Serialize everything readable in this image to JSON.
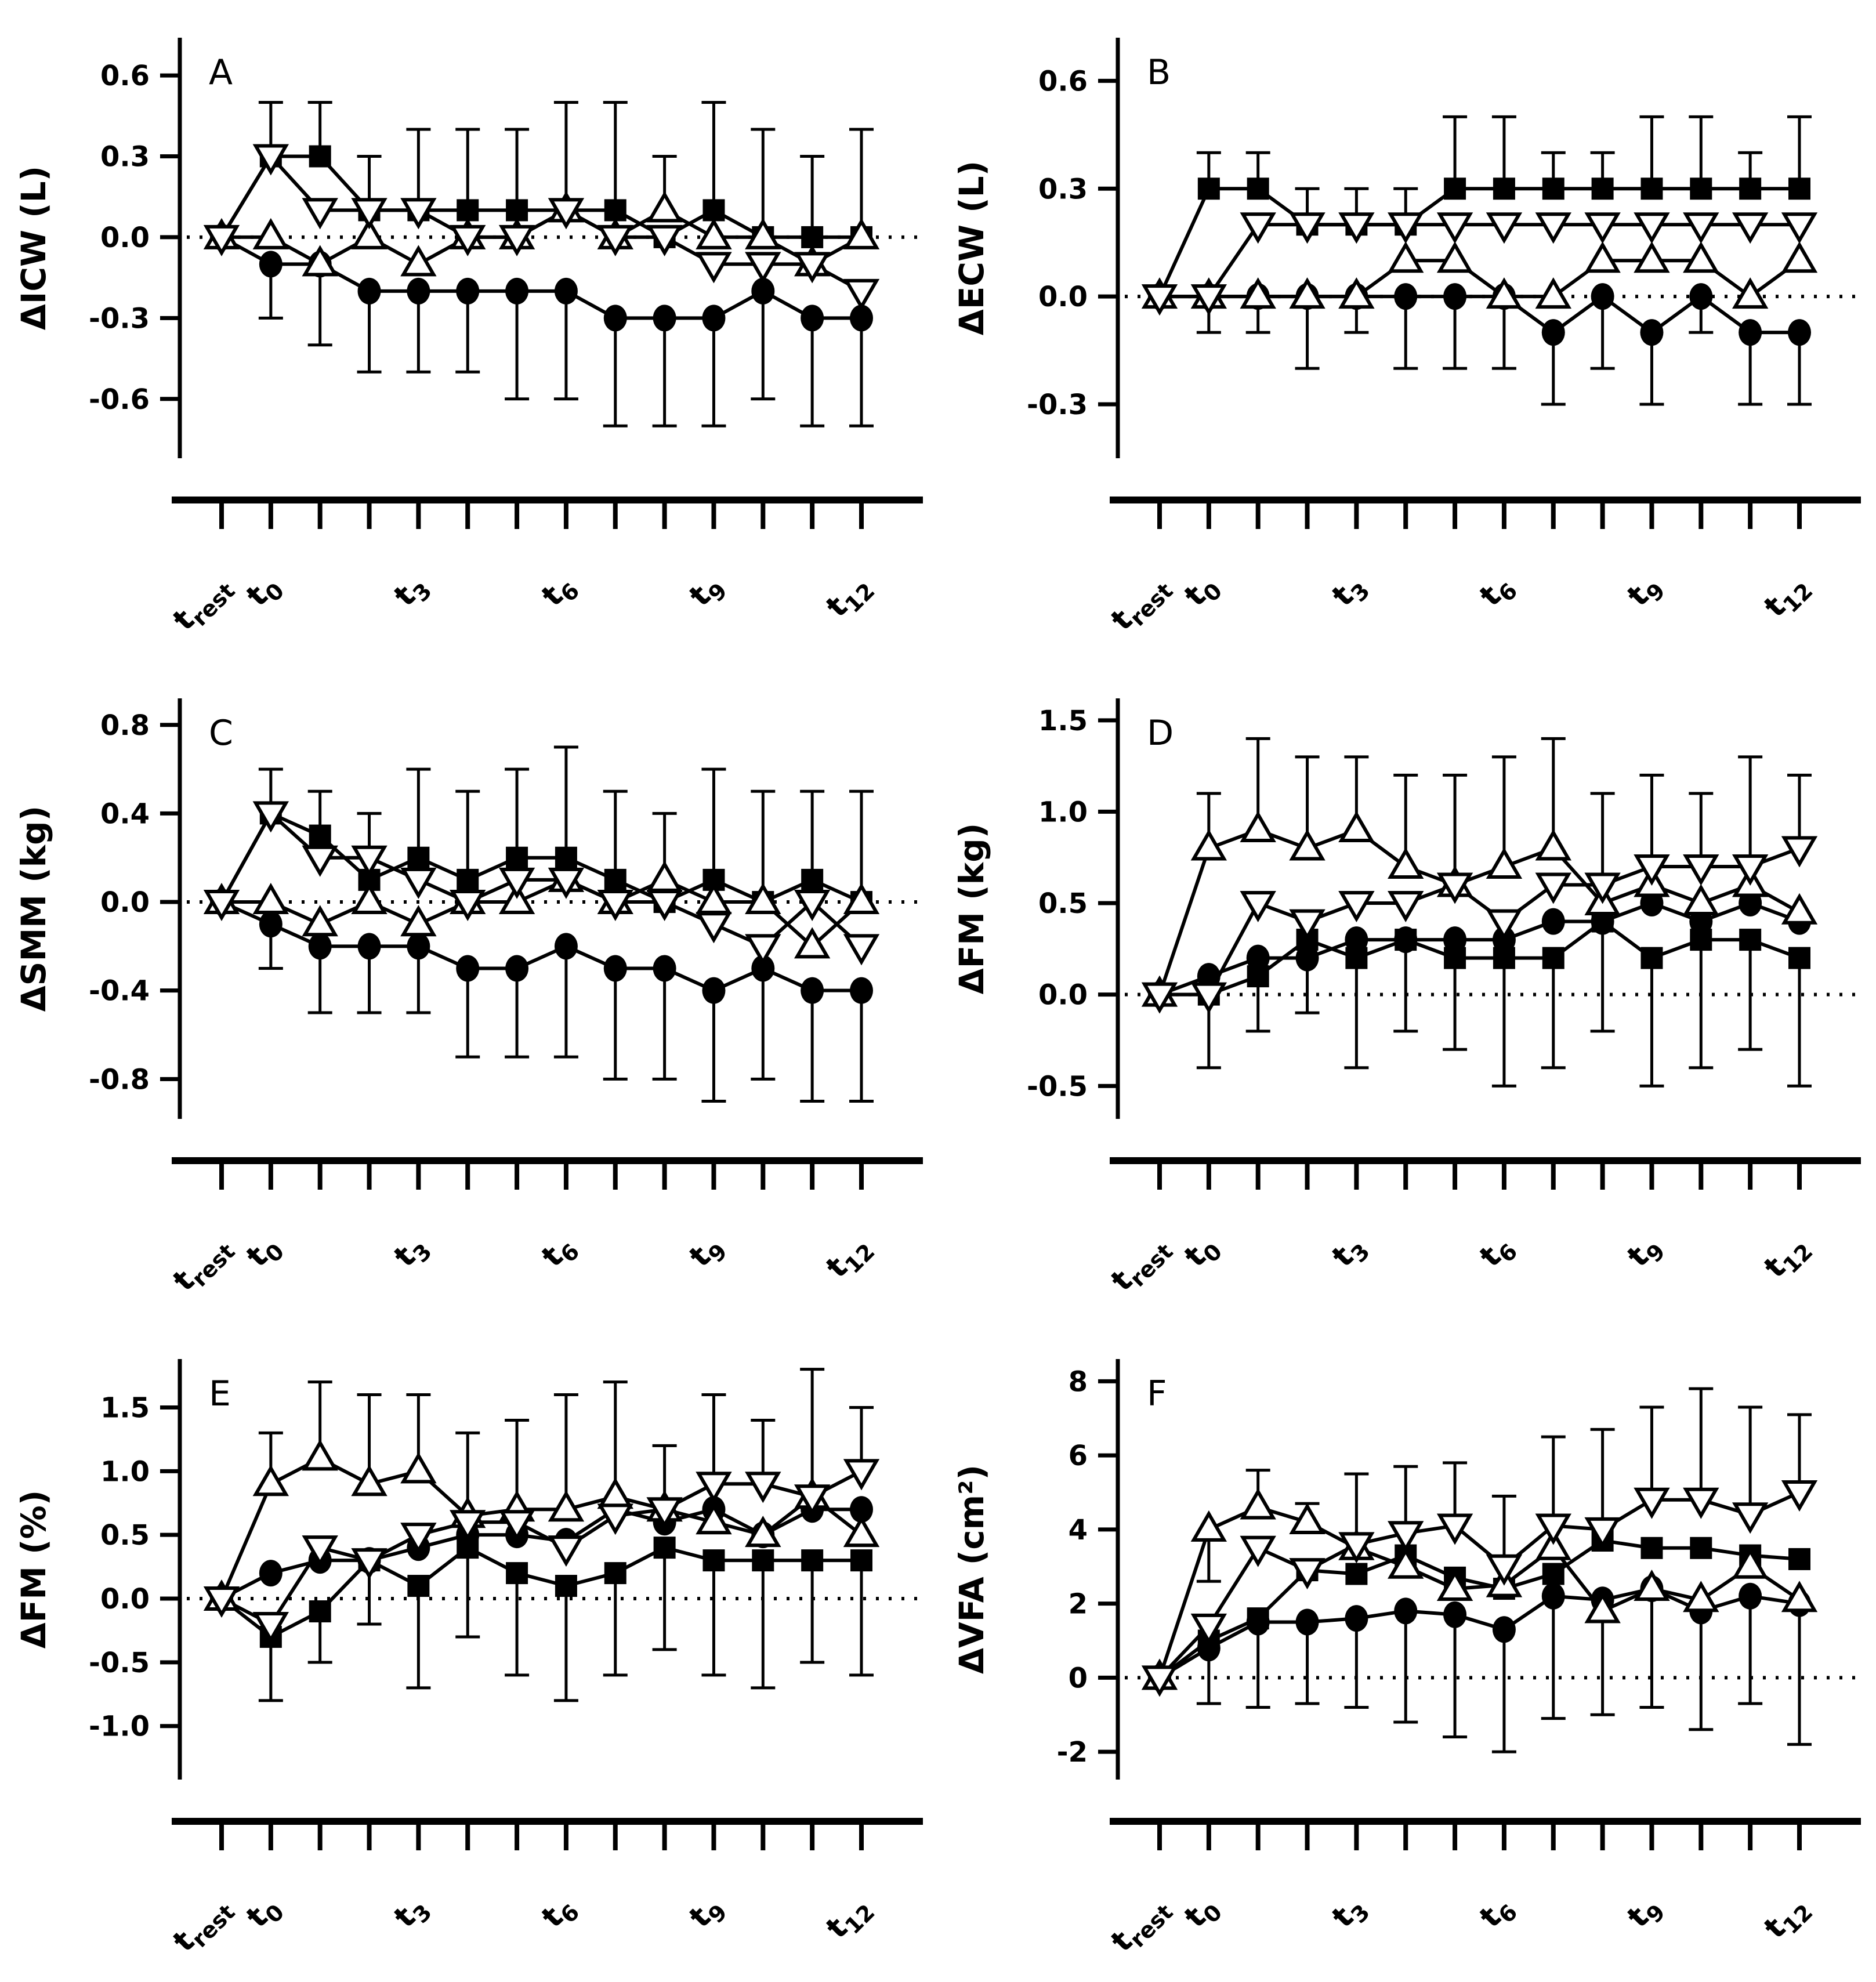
{
  "colors": {
    "foreground": "#000000",
    "background": "#ffffff"
  },
  "x_axis": {
    "tick_count": 14,
    "labels": [
      {
        "index": 0,
        "base": "t",
        "sub": "rest"
      },
      {
        "index": 1,
        "base": "t",
        "sub": "0"
      },
      {
        "index": 4,
        "base": "t",
        "sub": "3"
      },
      {
        "index": 7,
        "base": "t",
        "sub": "6"
      },
      {
        "index": 10,
        "base": "t",
        "sub": "9"
      },
      {
        "index": 13,
        "base": "t",
        "sub": "12"
      }
    ]
  },
  "chart_data": [
    {
      "type": "line",
      "letter": "A",
      "ylabel": "ΔICW (L)",
      "ylim": [
        -0.82,
        0.74
      ],
      "yticks": [
        0.6,
        0.3,
        0.0,
        -0.3,
        -0.6
      ],
      "ytick_labels": [
        "0.6",
        "0.3",
        "0.0",
        "-0.3",
        "-0.6"
      ],
      "zero_line": true,
      "series": [
        {
          "name": "filled-square",
          "marker": "square",
          "fill": "filled",
          "values": [
            0,
            0.3,
            0.3,
            0.1,
            0.1,
            0.1,
            0.1,
            0.1,
            0.1,
            0,
            0.1,
            0,
            0,
            0
          ]
        },
        {
          "name": "filled-circle",
          "marker": "circle",
          "fill": "filled",
          "values": [
            0,
            -0.1,
            -0.1,
            -0.2,
            -0.2,
            -0.2,
            -0.2,
            -0.2,
            -0.3,
            -0.3,
            -0.3,
            -0.2,
            -0.3,
            -0.3
          ]
        },
        {
          "name": "open-triangle-up",
          "marker": "triangle-up",
          "fill": "open",
          "values": [
            0,
            0,
            -0.1,
            0,
            -0.1,
            0,
            0,
            0.1,
            0,
            0.1,
            0,
            0,
            -0.1,
            0
          ]
        },
        {
          "name": "open-triangle-down",
          "marker": "triangle-down",
          "fill": "open",
          "values": [
            0,
            0.3,
            0.1,
            0.1,
            0.1,
            0,
            0,
            0.1,
            0,
            0,
            -0.1,
            -0.1,
            -0.1,
            -0.2
          ]
        }
      ],
      "whisker_top": [
        null,
        0.5,
        0.5,
        0.3,
        0.4,
        0.4,
        0.4,
        0.5,
        0.5,
        0.3,
        0.5,
        0.4,
        0.3,
        0.4
      ],
      "whisker_bottom": [
        null,
        -0.3,
        -0.4,
        -0.5,
        -0.5,
        -0.5,
        -0.6,
        -0.6,
        -0.7,
        -0.7,
        -0.7,
        -0.6,
        -0.7,
        -0.7
      ]
    },
    {
      "type": "line",
      "letter": "B",
      "ylabel": "ΔECW (L)",
      "ylim": [
        -0.45,
        0.72
      ],
      "yticks": [
        0.6,
        0.3,
        0.0,
        -0.3
      ],
      "ytick_labels": [
        "0.6",
        "0.3",
        "0.0",
        "-0.3"
      ],
      "zero_line": true,
      "series": [
        {
          "name": "filled-square",
          "marker": "square",
          "fill": "filled",
          "values": [
            0,
            0.3,
            0.3,
            0.2,
            0.2,
            0.2,
            0.3,
            0.3,
            0.3,
            0.3,
            0.3,
            0.3,
            0.3,
            0.3
          ]
        },
        {
          "name": "filled-circle",
          "marker": "circle",
          "fill": "filled",
          "values": [
            0,
            0,
            0,
            0,
            0,
            0,
            0,
            0,
            -0.1,
            0,
            -0.1,
            0,
            -0.1,
            -0.1
          ]
        },
        {
          "name": "open-triangle-up",
          "marker": "triangle-up",
          "fill": "open",
          "values": [
            0,
            0,
            0,
            0,
            0,
            0.1,
            0.1,
            0,
            0,
            0.1,
            0.1,
            0.1,
            0,
            0.1
          ]
        },
        {
          "name": "open-triangle-down",
          "marker": "triangle-down",
          "fill": "open",
          "values": [
            0,
            0,
            0.2,
            0.2,
            0.2,
            0.2,
            0.2,
            0.2,
            0.2,
            0.2,
            0.2,
            0.2,
            0.2,
            0.2
          ]
        }
      ],
      "whisker_top": [
        null,
        0.4,
        0.4,
        0.3,
        0.3,
        0.3,
        0.5,
        0.5,
        0.4,
        0.4,
        0.5,
        0.5,
        0.4,
        0.5
      ],
      "whisker_bottom": [
        null,
        -0.1,
        -0.1,
        -0.2,
        -0.1,
        -0.2,
        -0.2,
        -0.2,
        -0.3,
        -0.2,
        -0.3,
        -0.1,
        -0.3,
        -0.3
      ]
    },
    {
      "type": "line",
      "letter": "C",
      "ylabel": "ΔSMM (kg)",
      "ylim": [
        -0.98,
        0.92
      ],
      "yticks": [
        0.8,
        0.4,
        0.0,
        -0.4,
        -0.8
      ],
      "ytick_labels": [
        "0.8",
        "0.4",
        "0.0",
        "-0.4",
        "-0.8"
      ],
      "zero_line": true,
      "series": [
        {
          "name": "filled-square",
          "marker": "square",
          "fill": "filled",
          "values": [
            0,
            0.4,
            0.3,
            0.1,
            0.2,
            0.1,
            0.2,
            0.2,
            0.1,
            0,
            0.1,
            0,
            0.1,
            0
          ]
        },
        {
          "name": "filled-circle",
          "marker": "circle",
          "fill": "filled",
          "values": [
            0,
            -0.1,
            -0.2,
            -0.2,
            -0.2,
            -0.3,
            -0.3,
            -0.2,
            -0.3,
            -0.3,
            -0.4,
            -0.3,
            -0.4,
            -0.4
          ]
        },
        {
          "name": "open-triangle-up",
          "marker": "triangle-up",
          "fill": "open",
          "values": [
            0,
            0,
            -0.1,
            0,
            -0.1,
            0,
            0,
            0.1,
            0,
            0.1,
            0,
            0,
            -0.2,
            0
          ]
        },
        {
          "name": "open-triangle-down",
          "marker": "triangle-down",
          "fill": "open",
          "values": [
            0,
            0.4,
            0.2,
            0.2,
            0.1,
            0,
            0.1,
            0.1,
            0,
            0,
            -0.1,
            -0.2,
            0,
            -0.2
          ]
        }
      ],
      "whisker_top": [
        null,
        0.6,
        0.5,
        0.4,
        0.6,
        0.5,
        0.6,
        0.7,
        0.5,
        0.4,
        0.6,
        0.5,
        0.5,
        0.5
      ],
      "whisker_bottom": [
        null,
        -0.3,
        -0.5,
        -0.5,
        -0.5,
        -0.7,
        -0.7,
        -0.7,
        -0.8,
        -0.8,
        -0.9,
        -0.8,
        -0.9,
        -0.9
      ]
    },
    {
      "type": "line",
      "letter": "D",
      "ylabel": "ΔFM (kg)",
      "ylim": [
        -0.68,
        1.62
      ],
      "yticks": [
        1.5,
        1.0,
        0.5,
        0.0,
        -0.5
      ],
      "ytick_labels": [
        "1.5",
        "1.0",
        "0.5",
        "0.0",
        "-0.5"
      ],
      "zero_line": true,
      "series": [
        {
          "name": "filled-square",
          "marker": "square",
          "fill": "filled",
          "values": [
            0,
            0,
            0.1,
            0.3,
            0.2,
            0.3,
            0.2,
            0.2,
            0.2,
            0.4,
            0.2,
            0.3,
            0.3,
            0.2
          ]
        },
        {
          "name": "filled-circle",
          "marker": "circle",
          "fill": "filled",
          "values": [
            0,
            0.1,
            0.2,
            0.2,
            0.3,
            0.3,
            0.3,
            0.3,
            0.4,
            0.4,
            0.5,
            0.4,
            0.5,
            0.4
          ]
        },
        {
          "name": "open-triangle-up",
          "marker": "triangle-up",
          "fill": "open",
          "values": [
            0,
            0.8,
            0.9,
            0.8,
            0.9,
            0.7,
            0.6,
            0.7,
            0.8,
            0.5,
            0.6,
            0.5,
            0.6,
            0.45
          ]
        },
        {
          "name": "open-triangle-down",
          "marker": "triangle-down",
          "fill": "open",
          "values": [
            0,
            0,
            0.5,
            0.4,
            0.5,
            0.5,
            0.6,
            0.4,
            0.6,
            0.6,
            0.7,
            0.7,
            0.7,
            0.8
          ]
        }
      ],
      "whisker_top": [
        null,
        1.1,
        1.4,
        1.3,
        1.3,
        1.2,
        1.2,
        1.3,
        1.4,
        1.1,
        1.2,
        1.1,
        1.3,
        1.2
      ],
      "whisker_bottom": [
        null,
        -0.4,
        -0.2,
        -0.1,
        -0.4,
        -0.2,
        -0.3,
        -0.5,
        -0.4,
        -0.2,
        -0.5,
        -0.4,
        -0.3,
        -0.5
      ]
    },
    {
      "type": "line",
      "letter": "E",
      "ylabel": "ΔFM (%)",
      "ylim": [
        -1.42,
        1.88
      ],
      "yticks": [
        1.5,
        1.0,
        0.5,
        0.0,
        -0.5,
        -1.0
      ],
      "ytick_labels": [
        "1.5",
        "1.0",
        "0.5",
        "0.0",
        "-0.5",
        "-1.0"
      ],
      "zero_line": true,
      "series": [
        {
          "name": "filled-square",
          "marker": "square",
          "fill": "filled",
          "values": [
            0,
            -0.3,
            -0.1,
            0.3,
            0.1,
            0.4,
            0.2,
            0.1,
            0.2,
            0.4,
            0.3,
            0.3,
            0.3,
            0.3
          ]
        },
        {
          "name": "filled-circle",
          "marker": "circle",
          "fill": "filled",
          "values": [
            0,
            0.2,
            0.3,
            0.3,
            0.4,
            0.5,
            0.5,
            0.45,
            0.7,
            0.6,
            0.7,
            0.5,
            0.7,
            0.7
          ]
        },
        {
          "name": "open-triangle-up",
          "marker": "triangle-up",
          "fill": "open",
          "values": [
            0,
            0.9,
            1.1,
            0.9,
            1.0,
            0.65,
            0.7,
            0.7,
            0.8,
            0.7,
            0.6,
            0.5,
            0.8,
            0.5
          ]
        },
        {
          "name": "open-triangle-down",
          "marker": "triangle-down",
          "fill": "open",
          "values": [
            0,
            -0.2,
            0.4,
            0.3,
            0.5,
            0.6,
            0.6,
            0.4,
            0.65,
            0.7,
            0.9,
            0.9,
            0.8,
            1.0
          ]
        }
      ],
      "whisker_top": [
        null,
        1.3,
        1.7,
        1.6,
        1.6,
        1.3,
        1.4,
        1.6,
        1.7,
        1.2,
        1.6,
        1.4,
        1.8,
        1.5
      ],
      "whisker_bottom": [
        null,
        -0.8,
        -0.5,
        -0.2,
        -0.7,
        -0.3,
        -0.6,
        -0.8,
        -0.6,
        -0.4,
        -0.6,
        -0.7,
        -0.5,
        -0.6
      ]
    },
    {
      "type": "line",
      "letter": "F",
      "ylabel": "ΔVFA (cm²)",
      "ylim": [
        -2.75,
        8.6
      ],
      "yticks": [
        8,
        6,
        4,
        2,
        0,
        -2
      ],
      "ytick_labels": [
        "8",
        "6",
        "4",
        "2",
        "0",
        "-2"
      ],
      "zero_line": true,
      "series": [
        {
          "name": "filled-square",
          "marker": "square",
          "fill": "filled",
          "values": [
            0,
            1.0,
            1.6,
            2.9,
            2.8,
            3.3,
            2.7,
            2.4,
            2.8,
            3.7,
            3.5,
            3.5,
            3.3,
            3.2
          ]
        },
        {
          "name": "filled-circle",
          "marker": "circle",
          "fill": "filled",
          "values": [
            0,
            0.8,
            1.5,
            1.5,
            1.6,
            1.8,
            1.7,
            1.3,
            2.2,
            2.1,
            2.4,
            1.8,
            2.2,
            2.0
          ]
        },
        {
          "name": "open-triangle-up",
          "marker": "triangle-up",
          "fill": "open",
          "values": [
            0,
            4.0,
            4.6,
            4.2,
            3.5,
            3.0,
            2.4,
            2.5,
            3.5,
            1.8,
            2.4,
            2.1,
            3.0,
            2.1
          ]
        },
        {
          "name": "open-triangle-down",
          "marker": "triangle-down",
          "fill": "open",
          "values": [
            0,
            1.4,
            3.5,
            2.9,
            3.6,
            3.9,
            4.1,
            3.0,
            4.1,
            4.0,
            4.8,
            4.8,
            4.4,
            5.0
          ]
        }
      ],
      "whisker_top": [
        null,
        2.6,
        5.6,
        4.7,
        5.5,
        5.7,
        5.8,
        4.9,
        6.5,
        6.7,
        7.3,
        7.8,
        7.3,
        7.1
      ],
      "whisker_bottom": [
        null,
        -0.7,
        -0.8,
        -0.7,
        -0.8,
        -1.2,
        -1.6,
        -2.0,
        -1.1,
        -1.0,
        -0.8,
        -1.4,
        -0.7,
        -1.8
      ]
    }
  ]
}
